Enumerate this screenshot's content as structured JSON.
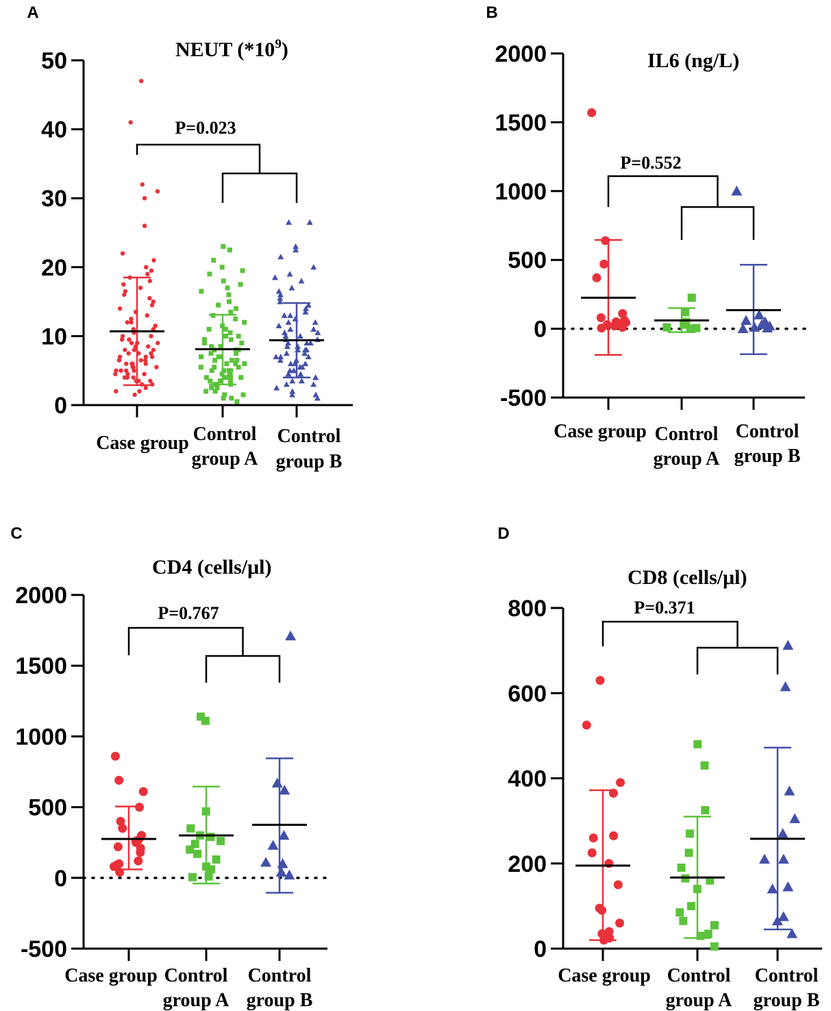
{
  "figure": {
    "colors": {
      "case": "#e8313a",
      "control_a": "#5cc23c",
      "control_b": "#4450a8"
    }
  },
  "chart_data": [
    {
      "panel": "A",
      "type": "scatter",
      "title": "NEUT (*10",
      "title_sup": "9",
      "title_close": ")",
      "ylim": [
        0,
        50
      ],
      "yticks": [
        0,
        10,
        20,
        30,
        40,
        50
      ],
      "zero_line": false,
      "categories": [
        [
          "Case group"
        ],
        [
          "Control",
          "group A"
        ],
        [
          "Control",
          "group B"
        ]
      ],
      "p_value": "P=0.023",
      "groups": [
        {
          "name": "Case group",
          "marker": "circle",
          "color": "#e8313a",
          "mean": 10.7,
          "sd_low": 2.9,
          "sd_high": 18.5,
          "values": [
            47,
            41,
            32,
            31,
            30,
            26,
            22,
            21,
            20,
            19.5,
            19,
            18.5,
            18,
            17.5,
            17,
            16.5,
            16,
            15.5,
            15,
            14.5,
            14,
            13.5,
            13,
            12.5,
            12,
            12,
            11.5,
            11,
            11,
            10.5,
            10,
            10,
            9.5,
            9.5,
            9,
            9,
            9,
            8.5,
            8.5,
            8,
            8,
            8,
            7.5,
            7.5,
            7.5,
            7,
            7,
            7,
            6.5,
            6.5,
            6.5,
            6,
            6,
            6,
            6,
            5.5,
            5.5,
            5.5,
            5,
            5,
            5,
            5,
            4.5,
            4.5,
            4.5,
            4,
            4,
            4,
            3.5,
            3.5,
            3.5,
            3,
            3,
            2.5,
            2,
            2,
            1.5
          ]
        },
        {
          "name": "Control group A",
          "marker": "square",
          "color": "#5cc23c",
          "mean": 8.1,
          "sd_low": 3.0,
          "sd_high": 13.1,
          "values": [
            23,
            22.5,
            21,
            20,
            19.5,
            19,
            18,
            17.5,
            17,
            16.5,
            16,
            15,
            14.5,
            14,
            13.5,
            13,
            12.5,
            12,
            11.5,
            11,
            11,
            10.5,
            10,
            10,
            9.5,
            9.5,
            9,
            9,
            8.5,
            8.5,
            8,
            8,
            8,
            7.5,
            7.5,
            7,
            7,
            7,
            6.5,
            6.5,
            6.5,
            6,
            6,
            6,
            5.5,
            5.5,
            5.5,
            5,
            5,
            5,
            5,
            4.5,
            4.5,
            4.5,
            4,
            4,
            4,
            4,
            3.5,
            3.5,
            3.5,
            3,
            3,
            3,
            2.5,
            2.5,
            2,
            2,
            1.5,
            1.5,
            1,
            1,
            0.5
          ]
        },
        {
          "name": "Control group B",
          "marker": "triangle",
          "color": "#4450a8",
          "mean": 9.4,
          "sd_low": 4.0,
          "sd_high": 14.8,
          "values": [
            26.5,
            26.5,
            23,
            22.5,
            21.5,
            20,
            19,
            18.5,
            18,
            17,
            16.5,
            16,
            15.5,
            15,
            14.5,
            14,
            13.5,
            13,
            13,
            12.5,
            12,
            12,
            11.5,
            11,
            11,
            10.5,
            10.5,
            10,
            10,
            9.5,
            9.5,
            9,
            9,
            9,
            8.5,
            8.5,
            8,
            8,
            8,
            7.5,
            7.5,
            7,
            7,
            7,
            6.5,
            6.5,
            6,
            6,
            6,
            5.5,
            5.5,
            5,
            5,
            5,
            4.5,
            4.5,
            4,
            4,
            3.5,
            3.5,
            3,
            3,
            2.5,
            2,
            1.5,
            1.5,
            1
          ]
        }
      ]
    },
    {
      "panel": "B",
      "type": "scatter",
      "title": "IL6 (ng/L)",
      "ylim": [
        -500,
        2000
      ],
      "yticks": [
        -500,
        0,
        500,
        1000,
        1500,
        2000
      ],
      "zero_line": true,
      "categories": [
        [
          "Case group"
        ],
        [
          "Control",
          "group A"
        ],
        [
          "Control",
          "group B"
        ]
      ],
      "p_value": "P=0.552",
      "groups": [
        {
          "name": "Case group",
          "marker": "circle",
          "color": "#e8313a",
          "mean": 225,
          "sd_low": -190,
          "sd_high": 645,
          "values": [
            1570,
            640,
            470,
            370,
            110,
            80,
            60,
            50,
            45,
            40,
            30,
            20,
            10,
            5
          ]
        },
        {
          "name": "Control group A",
          "marker": "square",
          "color": "#5cc23c",
          "mean": 60,
          "sd_low": -25,
          "sd_high": 150,
          "values": [
            225,
            120,
            50,
            30,
            10,
            5,
            0
          ]
        },
        {
          "name": "Control group B",
          "marker": "triangle",
          "color": "#4450a8",
          "mean": 135,
          "sd_low": -185,
          "sd_high": 465,
          "values": [
            1000,
            100,
            60,
            50,
            30,
            20,
            10,
            5,
            0
          ]
        }
      ]
    },
    {
      "panel": "C",
      "type": "scatter",
      "title": "CD4 (cells/μl)",
      "ylim": [
        -500,
        2000
      ],
      "yticks": [
        -500,
        0,
        500,
        1000,
        1500,
        2000
      ],
      "zero_line": true,
      "categories": [
        [
          "Case group"
        ],
        [
          "Control",
          "group A"
        ],
        [
          "Control",
          "group B"
        ]
      ],
      "p_value": "P=0.767",
      "groups": [
        {
          "name": "Case group",
          "marker": "circle",
          "color": "#e8313a",
          "mean": 275,
          "sd_low": 60,
          "sd_high": 505,
          "values": [
            860,
            690,
            610,
            500,
            400,
            350,
            300,
            270,
            260,
            250,
            220,
            210,
            180,
            120,
            100,
            90,
            80,
            40
          ]
        },
        {
          "name": "Control group A",
          "marker": "square",
          "color": "#5cc23c",
          "mean": 300,
          "sd_low": -40,
          "sd_high": 645,
          "values": [
            1140,
            1110,
            470,
            350,
            300,
            290,
            260,
            240,
            200,
            170,
            130,
            80,
            60,
            10,
            5
          ]
        },
        {
          "name": "Control group B",
          "marker": "triangle",
          "color": "#4450a8",
          "mean": 375,
          "sd_low": -105,
          "sd_high": 845,
          "values": [
            1710,
            670,
            620,
            300,
            230,
            110,
            100,
            40,
            20
          ]
        }
      ]
    },
    {
      "panel": "D",
      "type": "scatter",
      "title": "CD8 (cells/μl)",
      "ylim": [
        0,
        800
      ],
      "yticks": [
        0,
        200,
        400,
        600,
        800
      ],
      "zero_line": false,
      "categories": [
        [
          "Case group"
        ],
        [
          "Control",
          "group A"
        ],
        [
          "Control",
          "group B"
        ]
      ],
      "p_value": "P=0.371",
      "groups": [
        {
          "name": "Case group",
          "marker": "circle",
          "color": "#e8313a",
          "mean": 195,
          "sd_low": 20,
          "sd_high": 372,
          "values": [
            630,
            525,
            390,
            365,
            265,
            260,
            225,
            200,
            150,
            95,
            90,
            60,
            40,
            35,
            25,
            20
          ]
        },
        {
          "name": "Control group A",
          "marker": "square",
          "color": "#5cc23c",
          "mean": 167,
          "sd_low": 25,
          "sd_high": 310,
          "values": [
            480,
            430,
            325,
            270,
            225,
            190,
            165,
            160,
            140,
            100,
            85,
            65,
            55,
            35,
            30,
            5
          ]
        },
        {
          "name": "Control group B",
          "marker": "triangle",
          "color": "#4450a8",
          "mean": 258,
          "sd_low": 45,
          "sd_high": 472,
          "values": [
            712,
            615,
            370,
            305,
            270,
            210,
            210,
            145,
            140,
            75,
            65,
            35
          ]
        }
      ]
    }
  ]
}
